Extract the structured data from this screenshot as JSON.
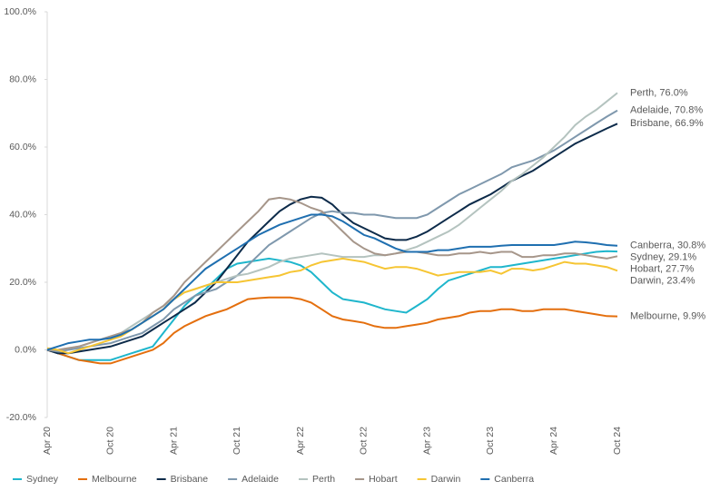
{
  "chart_data": {
    "type": "line",
    "categories": [
      "Apr 20",
      null,
      null,
      null,
      null,
      null,
      "Oct 20",
      null,
      null,
      null,
      null,
      null,
      "Apr 21",
      null,
      null,
      null,
      null,
      null,
      "Oct 21",
      null,
      null,
      null,
      null,
      null,
      "Apr 22",
      null,
      null,
      null,
      null,
      null,
      "Oct 22",
      null,
      null,
      null,
      null,
      null,
      "Apr 23",
      null,
      null,
      null,
      null,
      null,
      "Oct 23",
      null,
      null,
      null,
      null,
      null,
      "Apr 24",
      null,
      null,
      null,
      null,
      null,
      "Oct 24"
    ],
    "ylim": [
      -20,
      100
    ],
    "yticks": [
      {
        "value": -20,
        "label": "-20.0%"
      },
      {
        "value": 0,
        "label": "0.0%"
      },
      {
        "value": 20,
        "label": "20.0%"
      },
      {
        "value": 40,
        "label": "40.0%"
      },
      {
        "value": 60,
        "label": "60.0%"
      },
      {
        "value": 80,
        "label": "80.0%"
      },
      {
        "value": 100,
        "label": "100.0%"
      }
    ],
    "grid": false,
    "legend": "bottom",
    "series": [
      {
        "name": "Sydney",
        "color": "#1fb6cc",
        "label": "Sydney, 29.1%",
        "values": [
          0,
          -1,
          -2,
          -3,
          -3,
          -3,
          -3,
          -2,
          -1,
          0,
          1,
          5,
          9,
          13,
          16,
          18,
          21,
          24,
          25.5,
          26,
          26.5,
          27,
          26.5,
          26,
          25,
          23,
          20,
          17,
          15,
          14.5,
          14,
          13,
          12,
          11.5,
          11,
          13,
          15,
          18,
          20.5,
          21.5,
          22.5,
          23.5,
          24.5,
          24.5,
          25,
          25.5,
          26,
          26.5,
          27,
          27.5,
          28,
          28.5,
          29,
          29.2,
          29.1
        ]
      },
      {
        "name": "Melbourne",
        "color": "#e46f0e",
        "label": "Melbourne, 9.9%",
        "values": [
          0,
          -1,
          -2,
          -3,
          -3.5,
          -4,
          -4,
          -3,
          -2,
          -1,
          0,
          2,
          5,
          7,
          8.5,
          10,
          11,
          12,
          13.5,
          15,
          15.3,
          15.5,
          15.5,
          15.5,
          15,
          14,
          12,
          10,
          9,
          8.5,
          8,
          7,
          6.5,
          6.5,
          7,
          7.5,
          8,
          9,
          9.5,
          10,
          11,
          11.5,
          11.5,
          12,
          12,
          11.5,
          11.5,
          12,
          12,
          12,
          11.5,
          11,
          10.5,
          10,
          9.9
        ]
      },
      {
        "name": "Brisbane",
        "color": "#0d2b4a",
        "label": "Brisbane, 66.9%",
        "values": [
          0,
          -1,
          -1,
          -0.5,
          0,
          0.5,
          1,
          2,
          3,
          4,
          6,
          8,
          10,
          12,
          14,
          17,
          20,
          24,
          28,
          32,
          35,
          38,
          41,
          43,
          44.5,
          45.3,
          45,
          43,
          40,
          37.5,
          36,
          34.5,
          33,
          32.5,
          32.5,
          33.5,
          35,
          37,
          39,
          41,
          43,
          44.5,
          46,
          48,
          50,
          51.5,
          53,
          55,
          57,
          59,
          61,
          62.5,
          64,
          65.5,
          66.9
        ]
      },
      {
        "name": "Adelaide",
        "color": "#7f98ad",
        "label": "Adelaide, 70.8%",
        "values": [
          0,
          -0.5,
          0,
          0.5,
          1,
          1.5,
          2,
          3,
          4,
          5,
          7,
          9,
          12,
          14,
          16,
          17,
          18,
          20,
          22,
          25,
          28,
          31,
          33,
          35,
          37,
          39,
          40.5,
          41,
          40.5,
          40.5,
          40,
          40,
          39.5,
          39,
          39,
          39,
          40,
          42,
          44,
          46,
          47.5,
          49,
          50.5,
          52,
          54,
          55,
          56,
          57.5,
          59,
          61,
          63,
          65,
          67,
          69,
          70.8
        ]
      },
      {
        "name": "Perth",
        "color": "#b4c3bf",
        "label": "Perth, 76.0%",
        "values": [
          0,
          0,
          0.5,
          1,
          2,
          3,
          4,
          5,
          7,
          9,
          11,
          13,
          15,
          17,
          18,
          19,
          20,
          21,
          22,
          22.5,
          23.5,
          24.5,
          26,
          27,
          27.5,
          28,
          28.5,
          28,
          27.5,
          27.5,
          27.5,
          28,
          28,
          28.5,
          29.5,
          30.5,
          32,
          33.5,
          35,
          37,
          39.5,
          42,
          44.5,
          47,
          50,
          52,
          54.5,
          57,
          60,
          63,
          66.5,
          69,
          71,
          73.5,
          76
        ]
      },
      {
        "name": "Hobart",
        "color": "#a6968a",
        "label": "Hobart, 27.7%",
        "values": [
          0,
          0,
          0.5,
          1,
          2,
          3,
          4,
          5,
          6,
          8,
          11,
          13,
          16,
          20,
          23,
          26,
          29,
          32,
          35,
          38,
          41,
          44.5,
          45,
          44.5,
          43.5,
          42,
          41,
          38,
          35,
          32,
          30,
          28.5,
          28,
          28.5,
          29,
          29,
          28.5,
          28,
          28,
          28.5,
          28.5,
          29,
          28.5,
          29,
          29,
          27.5,
          27.5,
          28,
          28,
          28.5,
          28.5,
          28,
          27.5,
          27,
          27.7
        ]
      },
      {
        "name": "Darwin",
        "color": "#f6c533",
        "label": "Darwin, 23.4%",
        "values": [
          0.5,
          0,
          -1,
          0,
          1,
          2,
          3,
          4,
          6,
          8,
          10,
          12,
          15,
          17,
          18,
          19,
          20,
          20,
          20,
          20.5,
          21,
          21.5,
          22,
          23,
          23.5,
          25,
          26,
          26.5,
          27,
          26.5,
          26,
          25,
          24,
          24.5,
          24.5,
          24,
          23,
          22,
          22.5,
          23,
          23,
          23,
          23.5,
          22.5,
          24,
          24,
          23.5,
          24,
          25,
          26,
          25.5,
          25.5,
          25,
          24.5,
          23.4
        ]
      },
      {
        "name": "Canberra",
        "color": "#1f6fb0",
        "label": "Canberra, 30.8%",
        "values": [
          0,
          1,
          2,
          2.5,
          3,
          3,
          3.5,
          4.5,
          6,
          8,
          10,
          12,
          15,
          18,
          21,
          24,
          26,
          28,
          30,
          32,
          34,
          35.5,
          37,
          38,
          39,
          40,
          40,
          39.5,
          38,
          36,
          34,
          33,
          31.5,
          30,
          29,
          29,
          29,
          29.5,
          29.5,
          30,
          30.5,
          30.5,
          30.5,
          30.8,
          31,
          31,
          31,
          31,
          31,
          31.5,
          32,
          31.8,
          31.5,
          31,
          30.8
        ]
      }
    ]
  }
}
